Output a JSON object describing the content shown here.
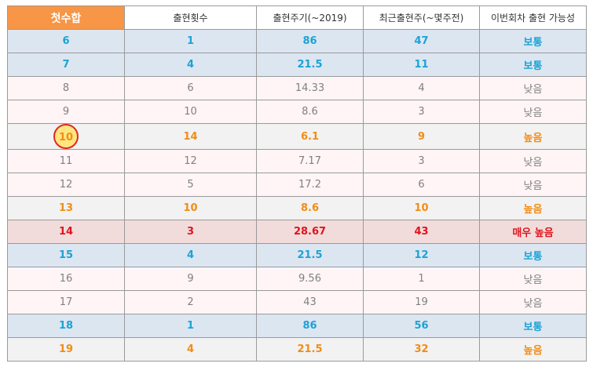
{
  "headers": [
    "첫수합",
    "출현횟수",
    "출현주기(~2019)",
    "최근출현주(~몇주전)",
    "이번회차 출현 가능성"
  ],
  "rows": [
    {
      "style": "bottong",
      "cells": [
        "6",
        "1",
        "86",
        "47",
        "보통"
      ]
    },
    {
      "style": "bottong",
      "cells": [
        "7",
        "4",
        "21.5",
        "11",
        "보통"
      ]
    },
    {
      "style": "normal",
      "cells": [
        "8",
        "6",
        "14.33",
        "4",
        "낮음"
      ]
    },
    {
      "style": "normal",
      "cells": [
        "9",
        "10",
        "8.6",
        "3",
        "낮음"
      ]
    },
    {
      "style": "high",
      "circled": true,
      "cells": [
        "10",
        "14",
        "6.1",
        "9",
        "높음"
      ]
    },
    {
      "style": "normal",
      "cells": [
        "11",
        "12",
        "7.17",
        "3",
        "낮음"
      ]
    },
    {
      "style": "normal",
      "cells": [
        "12",
        "5",
        "17.2",
        "6",
        "낮음"
      ]
    },
    {
      "style": "high",
      "cells": [
        "13",
        "10",
        "8.6",
        "10",
        "높음"
      ]
    },
    {
      "style": "veryhigh",
      "cells": [
        "14",
        "3",
        "28.67",
        "43",
        "매우 높음"
      ]
    },
    {
      "style": "bottong",
      "cells": [
        "15",
        "4",
        "21.5",
        "12",
        "보통"
      ]
    },
    {
      "style": "normal",
      "cells": [
        "16",
        "9",
        "9.56",
        "1",
        "낮음"
      ]
    },
    {
      "style": "normal",
      "cells": [
        "17",
        "2",
        "43",
        "19",
        "낮음"
      ]
    },
    {
      "style": "bottong",
      "cells": [
        "18",
        "1",
        "86",
        "56",
        "보통"
      ]
    },
    {
      "style": "high",
      "cells": [
        "19",
        "4",
        "21.5",
        "32",
        "높음"
      ]
    }
  ],
  "colors": {
    "header_accent": "#f79646",
    "bottong": "#1aa3d6",
    "high": "#f28c14",
    "very_high": "#e0141e",
    "low": "#808080"
  }
}
